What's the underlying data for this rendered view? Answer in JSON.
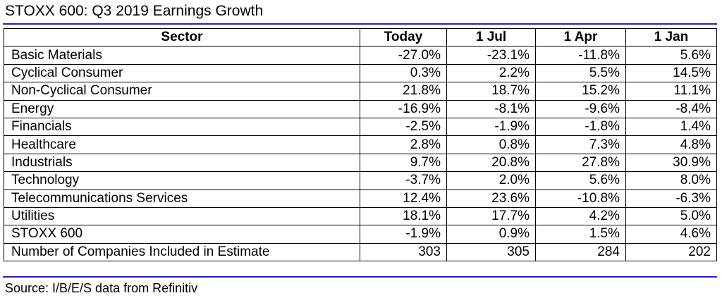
{
  "chart_data": {
    "type": "table",
    "title": "STOXX 600: Q3 2019 Earnings Growth",
    "columns": [
      "Sector",
      "Today",
      "1 Jul",
      "1 Apr",
      "1 Jan"
    ],
    "rows": [
      [
        "Basic Materials",
        "-27.0%",
        "-23.1%",
        "-11.8%",
        "5.6%"
      ],
      [
        "Cyclical Consumer",
        "0.3%",
        "2.2%",
        "5.5%",
        "14.5%"
      ],
      [
        "Non-Cyclical Consumer",
        "21.8%",
        "18.7%",
        "15.2%",
        "11.1%"
      ],
      [
        "Energy",
        "-16.9%",
        "-8.1%",
        "-9.6%",
        "-8.4%"
      ],
      [
        "Financials",
        "-2.5%",
        "-1.9%",
        "-1.8%",
        "1.4%"
      ],
      [
        "Healthcare",
        "2.8%",
        "0.8%",
        "7.3%",
        "4.8%"
      ],
      [
        "Industrials",
        "9.7%",
        "20.8%",
        "27.8%",
        "30.9%"
      ],
      [
        "Technology",
        "-3.7%",
        "2.0%",
        "5.6%",
        "8.0%"
      ],
      [
        "Telecommunications Services",
        "12.4%",
        "23.6%",
        "-10.8%",
        "-6.3%"
      ],
      [
        "Utilities",
        "18.1%",
        "17.7%",
        "4.2%",
        "5.0%"
      ],
      [
        "STOXX 600",
        "-1.9%",
        "0.9%",
        "1.5%",
        "4.6%"
      ],
      [
        "Number of Companies Included in Estimate",
        "303",
        "305",
        "284",
        "202"
      ]
    ],
    "source": "Source: I/B/E/S data from Refinitiv"
  },
  "colors": {
    "rule": "#1f1fd6",
    "grid": "#000000",
    "text": "#000000"
  }
}
